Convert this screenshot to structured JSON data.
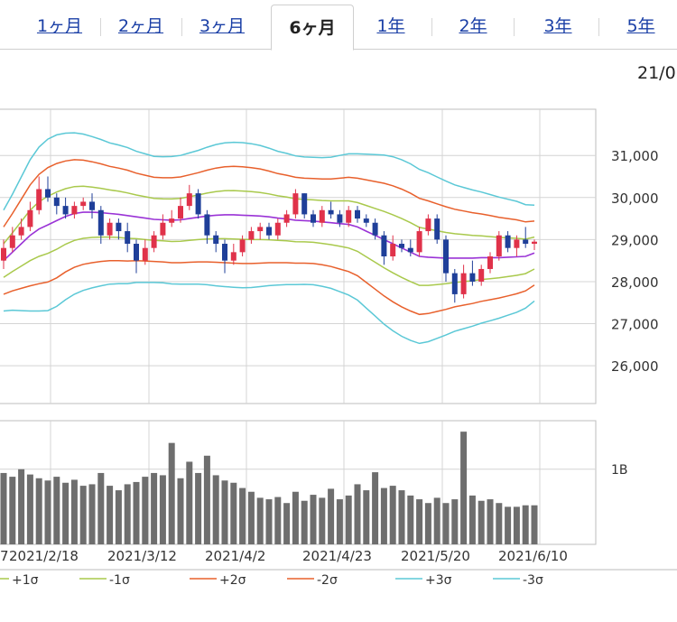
{
  "tabs": [
    {
      "label": "1ヶ月",
      "active": false
    },
    {
      "label": "2ヶ月",
      "active": false
    },
    {
      "label": "3ヶ月",
      "active": false
    },
    {
      "label": "6ヶ月",
      "active": true
    },
    {
      "label": "1年",
      "active": false
    },
    {
      "label": "2年",
      "active": false
    },
    {
      "label": "3年",
      "active": false
    },
    {
      "label": "5年",
      "active": false
    }
  ],
  "header": {
    "date_label": "21/0"
  },
  "chart_data": {
    "type": "candlestick",
    "price_axis": {
      "ticks": [
        31000,
        30000,
        29000,
        28000,
        27000,
        26000
      ],
      "tick_labels": [
        "31,000",
        "30,000",
        "29,000",
        "28,000",
        "27,000",
        "26,000"
      ],
      "ylim": [
        25100,
        32100
      ]
    },
    "volume_axis": {
      "tick_labels": [
        "1B"
      ],
      "ticks": [
        1000000000
      ]
    },
    "x_tick_labels": [
      "7",
      "2021/2/18",
      "2021/3/12",
      "2021/4/2",
      "2021/4/23",
      "2021/5/20",
      "2021/6/10"
    ],
    "grid": true,
    "legend": [
      {
        "label": "+1σ",
        "color": "#a9c94c"
      },
      {
        "label": "-1σ",
        "color": "#a9c94c"
      },
      {
        "label": "+2σ",
        "color": "#e8602c"
      },
      {
        "label": "-2σ",
        "color": "#e8602c"
      },
      {
        "label": "+3σ",
        "color": "#5bc8d6"
      },
      {
        "label": "-3σ",
        "color": "#5bc8d6"
      }
    ],
    "colors": {
      "up": "#e0324a",
      "down": "#1f3f99",
      "sma": "#9a33d6",
      "volume": "#6e6e6e"
    },
    "sma": [
      28500,
      28700,
      28900,
      29100,
      29250,
      29350,
      29450,
      29550,
      29620,
      29650,
      29650,
      29640,
      29620,
      29600,
      29570,
      29540,
      29510,
      29480,
      29470,
      29460,
      29470,
      29500,
      29530,
      29560,
      29580,
      29590,
      29590,
      29580,
      29570,
      29560,
      29540,
      29510,
      29490,
      29460,
      29450,
      29440,
      29420,
      29400,
      29380,
      29360,
      29300,
      29200,
      29100,
      29000,
      28900,
      28800,
      28700,
      28600,
      28580,
      28570,
      28560,
      28560,
      28560,
      28560,
      28570,
      28570,
      28570,
      28580,
      28590,
      28600,
      28680
    ],
    "sigma": [
      400,
      460,
      530,
      600,
      650,
      680,
      680,
      660,
      640,
      620,
      600,
      580,
      560,
      550,
      540,
      520,
      510,
      500,
      500,
      505,
      510,
      520,
      530,
      545,
      560,
      570,
      575,
      575,
      570,
      560,
      545,
      530,
      520,
      510,
      505,
      505,
      510,
      520,
      540,
      560,
      580,
      610,
      640,
      670,
      690,
      700,
      700,
      690,
      670,
      640,
      610,
      580,
      560,
      540,
      520,
      500,
      480,
      460,
      440,
      410,
      380
    ],
    "candles": [
      [
        28500,
        29000,
        28300,
        28800
      ],
      [
        28800,
        29300,
        28700,
        29100
      ],
      [
        29100,
        29500,
        29000,
        29300
      ],
      [
        29300,
        29900,
        29200,
        29700
      ],
      [
        29700,
        30500,
        29600,
        30200
      ],
      [
        30200,
        30500,
        29900,
        30000
      ],
      [
        30000,
        30100,
        29600,
        29800
      ],
      [
        29800,
        30000,
        29500,
        29600
      ],
      [
        29600,
        29900,
        29500,
        29800
      ],
      [
        29800,
        30000,
        29700,
        29900
      ],
      [
        29900,
        30100,
        29500,
        29700
      ],
      [
        29700,
        29800,
        28900,
        29100
      ],
      [
        29100,
        29500,
        29000,
        29400
      ],
      [
        29400,
        29500,
        29000,
        29200
      ],
      [
        29200,
        29400,
        28700,
        28900
      ],
      [
        28900,
        29000,
        28200,
        28500
      ],
      [
        28500,
        29000,
        28400,
        28800
      ],
      [
        28800,
        29200,
        28700,
        29100
      ],
      [
        29100,
        29600,
        29000,
        29400
      ],
      [
        29400,
        29700,
        29300,
        29500
      ],
      [
        29500,
        30000,
        29400,
        29800
      ],
      [
        29800,
        30300,
        29700,
        30100
      ],
      [
        30100,
        30200,
        29500,
        29600
      ],
      [
        29600,
        29700,
        28900,
        29100
      ],
      [
        29100,
        29200,
        28700,
        28900
      ],
      [
        28900,
        29000,
        28200,
        28500
      ],
      [
        28500,
        28900,
        28400,
        28700
      ],
      [
        28700,
        29100,
        28600,
        29000
      ],
      [
        29000,
        29300,
        28900,
        29200
      ],
      [
        29200,
        29400,
        29000,
        29300
      ],
      [
        29300,
        29400,
        29000,
        29100
      ],
      [
        29100,
        29500,
        29000,
        29400
      ],
      [
        29400,
        29700,
        29300,
        29600
      ],
      [
        29600,
        30200,
        29500,
        30100
      ],
      [
        30100,
        30100,
        29500,
        29600
      ],
      [
        29600,
        29700,
        29300,
        29400
      ],
      [
        29400,
        29800,
        29300,
        29700
      ],
      [
        29700,
        29900,
        29500,
        29600
      ],
      [
        29600,
        29700,
        29300,
        29400
      ],
      [
        29400,
        29800,
        29300,
        29700
      ],
      [
        29700,
        29800,
        29400,
        29500
      ],
      [
        29500,
        29600,
        29300,
        29400
      ],
      [
        29400,
        29500,
        29000,
        29100
      ],
      [
        29100,
        29200,
        28400,
        28600
      ],
      [
        28600,
        29100,
        28500,
        28900
      ],
      [
        28900,
        29000,
        28700,
        28800
      ],
      [
        28800,
        29000,
        28600,
        28700
      ],
      [
        28700,
        29300,
        28600,
        29200
      ],
      [
        29200,
        29600,
        29100,
        29500
      ],
      [
        29500,
        29600,
        28900,
        29000
      ],
      [
        29000,
        29100,
        28000,
        28200
      ],
      [
        28200,
        28300,
        27500,
        27700
      ],
      [
        27700,
        28400,
        27600,
        28200
      ],
      [
        28200,
        28500,
        27900,
        28000
      ],
      [
        28000,
        28400,
        27900,
        28300
      ],
      [
        28300,
        28700,
        28200,
        28600
      ],
      [
        28600,
        29200,
        28500,
        29100
      ],
      [
        29100,
        29200,
        28700,
        28800
      ],
      [
        28800,
        29100,
        28600,
        29000
      ],
      [
        29000,
        29300,
        28800,
        28900
      ],
      [
        28900,
        29000,
        28750,
        28950
      ]
    ],
    "volume": [
      0.95,
      0.9,
      1.0,
      0.93,
      0.88,
      0.85,
      0.9,
      0.82,
      0.86,
      0.78,
      0.8,
      0.95,
      0.78,
      0.72,
      0.8,
      0.83,
      0.9,
      0.95,
      0.92,
      1.35,
      0.88,
      1.1,
      0.95,
      1.18,
      0.92,
      0.85,
      0.82,
      0.75,
      0.7,
      0.62,
      0.6,
      0.63,
      0.55,
      0.7,
      0.58,
      0.66,
      0.62,
      0.74,
      0.6,
      0.65,
      0.8,
      0.72,
      0.96,
      0.75,
      0.78,
      0.72,
      0.65,
      0.6,
      0.55,
      0.62,
      0.55,
      0.6,
      1.5,
      0.65,
      0.58,
      0.6,
      0.55,
      0.5,
      0.5,
      0.52,
      0.52
    ]
  }
}
